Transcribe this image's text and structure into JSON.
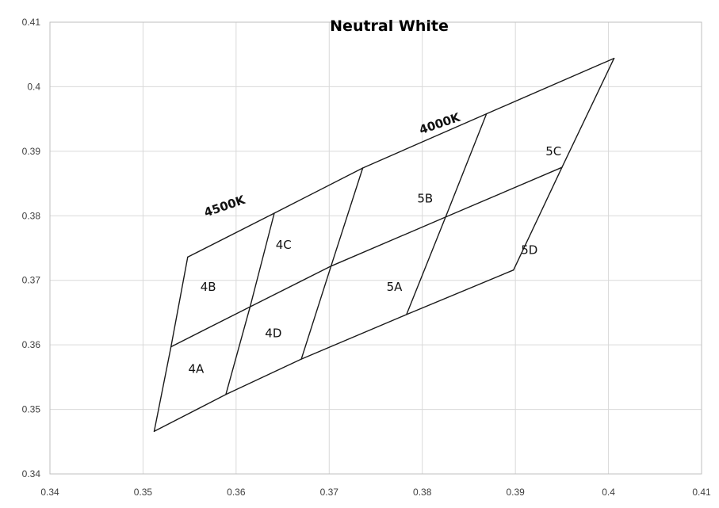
{
  "chart_data": {
    "type": "scatter",
    "title": "Neutral White",
    "xlabel": "",
    "ylabel": "",
    "xlim": [
      0.34,
      0.41
    ],
    "ylim": [
      0.34,
      0.41
    ],
    "x_ticks": [
      "0.34",
      "0.35",
      "0.36",
      "0.37",
      "0.38",
      "0.39",
      "0.4",
      "0.41"
    ],
    "y_ticks": [
      "0.34",
      "0.35",
      "0.36",
      "0.37",
      "0.38",
      "0.39",
      "0.4",
      "0.41"
    ],
    "grid": true,
    "line_color": "#1a1a1a",
    "grid_color": "#d9d9d9",
    "points": {
      "A0": [
        0.3512,
        0.3466
      ],
      "A1": [
        0.3589,
        0.3523
      ],
      "A2": [
        0.367,
        0.3578
      ],
      "A3": [
        0.3783,
        0.3647
      ],
      "A4": [
        0.3898,
        0.3716
      ],
      "B0": [
        0.353,
        0.3597
      ],
      "B1": [
        0.3615,
        0.3659
      ],
      "B2": [
        0.3702,
        0.3722
      ],
      "B3": [
        0.3825,
        0.3798
      ],
      "B4": [
        0.395,
        0.3875
      ],
      "C0": [
        0.3548,
        0.3736
      ],
      "C1": [
        0.3641,
        0.3804
      ],
      "C2": [
        0.3736,
        0.3874
      ],
      "C3": [
        0.3869,
        0.3958
      ],
      "C4": [
        0.4006,
        0.4044
      ]
    },
    "lines": [
      [
        "A0",
        "A1",
        "A2",
        "A3",
        "A4"
      ],
      [
        "B0",
        "B1",
        "B2",
        "B3",
        "B4"
      ],
      [
        "C0",
        "C1",
        "C2",
        "C3",
        "C4"
      ],
      [
        "A0",
        "B0",
        "C0"
      ],
      [
        "A1",
        "B1",
        "C1"
      ],
      [
        "A2",
        "B2",
        "C2"
      ],
      [
        "A3",
        "B3",
        "C3"
      ],
      [
        "A4",
        "B4",
        "C4"
      ]
    ],
    "bins": [
      {
        "label": "4A",
        "x": 0.3557,
        "y": 0.3563
      },
      {
        "label": "4B",
        "x": 0.357,
        "y": 0.369
      },
      {
        "label": "4C",
        "x": 0.3651,
        "y": 0.3755
      },
      {
        "label": "4D",
        "x": 0.364,
        "y": 0.3618
      },
      {
        "label": "5A",
        "x": 0.377,
        "y": 0.369
      },
      {
        "label": "5B",
        "x": 0.3803,
        "y": 0.3827
      },
      {
        "label": "5C",
        "x": 0.3941,
        "y": 0.39
      },
      {
        "label": "5D",
        "x": 0.3915,
        "y": 0.3747
      }
    ],
    "cct_labels": [
      {
        "label": "4500K",
        "x": 0.3589,
        "y": 0.3809,
        "angle": -19
      },
      {
        "label": "4000K",
        "x": 0.382,
        "y": 0.3937,
        "angle": -19
      }
    ]
  }
}
